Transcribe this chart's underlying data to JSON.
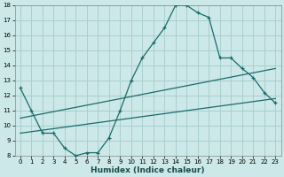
{
  "xlabel": "Humidex (Indice chaleur)",
  "bg_color": "#cce8e8",
  "grid_color": "#aacfcf",
  "line_color": "#1a6b6b",
  "xlim": [
    -0.5,
    23.5
  ],
  "ylim": [
    8,
    18
  ],
  "xticks": [
    0,
    1,
    2,
    3,
    4,
    5,
    6,
    7,
    8,
    9,
    10,
    11,
    12,
    13,
    14,
    15,
    16,
    17,
    18,
    19,
    20,
    21,
    22,
    23
  ],
  "yticks": [
    8,
    9,
    10,
    11,
    12,
    13,
    14,
    15,
    16,
    17,
    18
  ],
  "line1_x": [
    0,
    1,
    2,
    3,
    4,
    5,
    6,
    7,
    8,
    9,
    10,
    11,
    12,
    13,
    14,
    15,
    16,
    17,
    18,
    19,
    20,
    21,
    22,
    23
  ],
  "line1_y": [
    12.5,
    11.0,
    9.5,
    9.5,
    8.5,
    8.0,
    8.2,
    8.2,
    9.2,
    11.0,
    13.0,
    14.5,
    15.5,
    16.5,
    18.0,
    18.0,
    17.5,
    17.2,
    14.5,
    14.5,
    13.8,
    13.2,
    12.2,
    11.5
  ],
  "line2_x": [
    0,
    23
  ],
  "line2_y": [
    9.5,
    11.8
  ],
  "line3_x": [
    0,
    23
  ],
  "line3_y": [
    10.5,
    13.8
  ],
  "xlabel_fontsize": 6.5,
  "tick_fontsize": 5.0
}
